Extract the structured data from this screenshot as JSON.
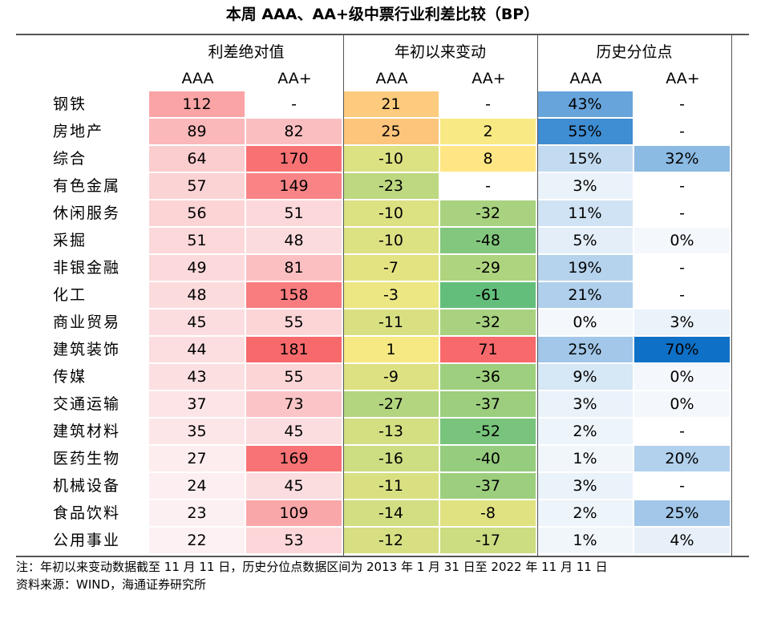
{
  "title": "本周 AAA、AA+级中票行业利差比较（BP）",
  "group_headers": [
    "利差绝对值",
    "年初以来变动",
    "历史分位点"
  ],
  "sub_headers": [
    "AAA",
    "AA+",
    "AAA",
    "AA+",
    "AAA",
    "AA+"
  ],
  "colors": {
    "spread_low": "#fdf1f3",
    "spread_high": "#f8696b",
    "change_low": "#63be7b",
    "change_mid": "#ffeb84",
    "change_high": "#f8696b",
    "pct_low": "#f4f8fc",
    "pct_high": "#0e70c6"
  },
  "chart_data": {
    "type": "table",
    "title": "本周 AAA、AA+级中票行业利差比较（BP）",
    "columns": [
      "利差绝对值 AAA",
      "利差绝对值 AA+",
      "年初以来变动 AAA",
      "年初以来变动 AA+",
      "历史分位点 AAA",
      "历史分位点 AA+"
    ],
    "rows": [
      {
        "industry": "钢铁",
        "values": [
          "112",
          "-",
          "21",
          "-",
          "43%",
          "-"
        ]
      },
      {
        "industry": "房地产",
        "values": [
          "89",
          "82",
          "25",
          "2",
          "55%",
          "-"
        ]
      },
      {
        "industry": "综合",
        "values": [
          "64",
          "170",
          "-10",
          "8",
          "15%",
          "32%"
        ]
      },
      {
        "industry": "有色金属",
        "values": [
          "57",
          "149",
          "-23",
          "-",
          "3%",
          "-"
        ]
      },
      {
        "industry": "休闲服务",
        "values": [
          "56",
          "51",
          "-10",
          "-32",
          "11%",
          "-"
        ]
      },
      {
        "industry": "采掘",
        "values": [
          "51",
          "48",
          "-10",
          "-48",
          "5%",
          "0%"
        ]
      },
      {
        "industry": "非银金融",
        "values": [
          "49",
          "81",
          "-7",
          "-29",
          "19%",
          "-"
        ]
      },
      {
        "industry": "化工",
        "values": [
          "48",
          "158",
          "-3",
          "-61",
          "21%",
          "-"
        ]
      },
      {
        "industry": "商业贸易",
        "values": [
          "45",
          "55",
          "-11",
          "-32",
          "0%",
          "3%"
        ]
      },
      {
        "industry": "建筑装饰",
        "values": [
          "44",
          "181",
          "1",
          "71",
          "25%",
          "70%"
        ]
      },
      {
        "industry": "传媒",
        "values": [
          "43",
          "55",
          "-9",
          "-36",
          "9%",
          "0%"
        ]
      },
      {
        "industry": "交通运输",
        "values": [
          "37",
          "73",
          "-27",
          "-37",
          "3%",
          "0%"
        ]
      },
      {
        "industry": "建筑材料",
        "values": [
          "35",
          "45",
          "-13",
          "-52",
          "2%",
          "-"
        ]
      },
      {
        "industry": "医药生物",
        "values": [
          "27",
          "169",
          "-16",
          "-40",
          "1%",
          "20%"
        ]
      },
      {
        "industry": "机械设备",
        "values": [
          "24",
          "45",
          "-11",
          "-37",
          "3%",
          "-"
        ]
      },
      {
        "industry": "食品饮料",
        "values": [
          "23",
          "109",
          "-14",
          "-8",
          "2%",
          "25%"
        ]
      },
      {
        "industry": "公用事业",
        "values": [
          "22",
          "53",
          "-12",
          "-17",
          "1%",
          "4%"
        ]
      }
    ]
  },
  "footnote": {
    "line1": "注：年初以来变动数据截至 11 月 11 日，历史分位点数据区间为 2013 年 1 月 31 日至 2022 年 11 月 11 日",
    "line2": "资料来源：WIND，海通证券研究所"
  }
}
